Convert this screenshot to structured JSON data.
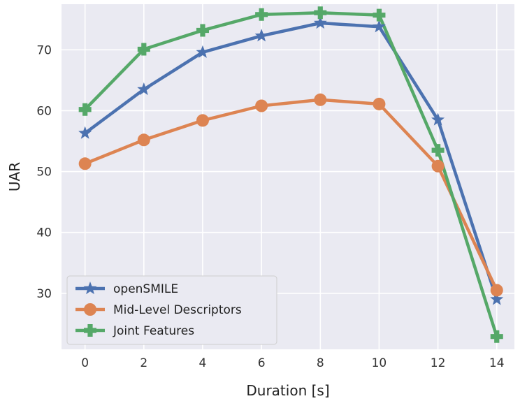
{
  "chart_data": {
    "type": "line",
    "xlabel": "Duration [s]",
    "ylabel": "UAR",
    "x": [
      0,
      2,
      4,
      6,
      8,
      10,
      12,
      14
    ],
    "xlim": [
      -0.8,
      14.6
    ],
    "ylim": [
      20.8,
      77.5
    ],
    "xticks": [
      "0",
      "2",
      "4",
      "6",
      "8",
      "10",
      "12",
      "14"
    ],
    "yticks": [
      "30",
      "40",
      "50",
      "60",
      "70"
    ],
    "grid": true,
    "legend_position": "lower-left",
    "background": "#eaeaf2",
    "series": [
      {
        "name": "openSMILE",
        "color": "#4c72b0",
        "marker": "star",
        "values": [
          56.3,
          63.5,
          69.6,
          72.3,
          74.4,
          73.8,
          58.5,
          29.0
        ]
      },
      {
        "name": "Mid-Level Descriptors",
        "color": "#dd8452",
        "marker": "circle",
        "values": [
          51.3,
          55.2,
          58.4,
          60.8,
          61.8,
          61.1,
          50.9,
          30.5
        ]
      },
      {
        "name": "Joint Features",
        "color": "#55a868",
        "marker": "plus",
        "values": [
          60.2,
          70.1,
          73.2,
          75.8,
          76.1,
          75.7,
          53.5,
          22.9
        ]
      }
    ]
  }
}
